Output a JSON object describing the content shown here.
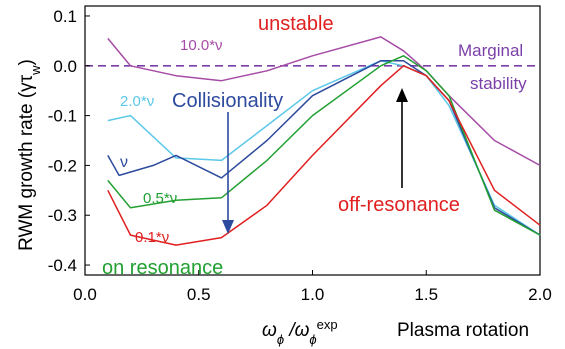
{
  "chart_data": {
    "type": "line",
    "ylabel": "RWM growth rate (γτ",
    "ylabel_sub": "w",
    "ylabel_end": ")",
    "xlabel_main": "ω",
    "xlabel_sub1": "ϕ",
    "xlabel_slash": " /ω",
    "xlabel_sub2": "ϕ",
    "xlabel_sup": "exp",
    "xlabel_extra": "Plasma rotation",
    "xlim": [
      0.0,
      2.0
    ],
    "ylim": [
      -0.42,
      0.12
    ],
    "x_ticks": [
      "0.0",
      "0.5",
      "1.0",
      "1.5",
      "2.0"
    ],
    "y_ticks": [
      "0.1",
      "0.0",
      "-0.1",
      "-0.2",
      "-0.3",
      "-0.4"
    ],
    "x_tick_values": [
      0.0,
      0.5,
      1.0,
      1.5,
      2.0
    ],
    "y_tick_values": [
      0.1,
      0.0,
      -0.1,
      -0.2,
      -0.3,
      -0.4
    ],
    "marginal_stability_y": 0.0,
    "series": [
      {
        "name": "10.0*ν",
        "color": "#a64ca6",
        "x": [
          0.1,
          0.2,
          0.4,
          0.6,
          0.8,
          1.0,
          1.3,
          1.4,
          1.5,
          1.6,
          1.8,
          2.0
        ],
        "y": [
          0.055,
          0.0,
          -0.02,
          -0.03,
          -0.01,
          0.02,
          0.058,
          0.03,
          -0.01,
          -0.06,
          -0.15,
          -0.2
        ]
      },
      {
        "name": "2.0*ν",
        "color": "#5bc8e8",
        "x": [
          0.1,
          0.2,
          0.4,
          0.6,
          0.8,
          1.0,
          1.3,
          1.4,
          1.5,
          1.6,
          1.8,
          2.0
        ],
        "y": [
          -0.11,
          -0.1,
          -0.185,
          -0.19,
          -0.12,
          -0.05,
          0.01,
          0.0,
          -0.02,
          -0.08,
          -0.28,
          -0.34
        ]
      },
      {
        "name": "ν",
        "color": "#2d4b9e",
        "x": [
          0.1,
          0.15,
          0.3,
          0.4,
          0.6,
          0.8,
          1.0,
          1.3,
          1.4,
          1.5,
          1.6,
          1.8,
          2.0
        ],
        "y": [
          -0.18,
          -0.22,
          -0.2,
          -0.18,
          -0.225,
          -0.15,
          -0.06,
          0.01,
          0.01,
          -0.02,
          -0.07,
          -0.285,
          -0.34
        ]
      },
      {
        "name": "0.5*ν",
        "color": "#22a032",
        "x": [
          0.1,
          0.2,
          0.4,
          0.6,
          0.8,
          1.0,
          1.3,
          1.4,
          1.5,
          1.6,
          1.8,
          2.0
        ],
        "y": [
          -0.23,
          -0.285,
          -0.27,
          -0.265,
          -0.19,
          -0.1,
          0.0,
          0.02,
          -0.01,
          -0.06,
          -0.29,
          -0.34
        ]
      },
      {
        "name": "0.1*ν",
        "color": "#e02020",
        "x": [
          0.1,
          0.2,
          0.4,
          0.6,
          0.8,
          1.0,
          1.3,
          1.4,
          1.5,
          1.6,
          1.8,
          2.0
        ],
        "y": [
          -0.25,
          -0.34,
          -0.36,
          -0.345,
          -0.28,
          -0.18,
          -0.04,
          0.0,
          -0.02,
          -0.07,
          -0.25,
          -0.32
        ]
      }
    ],
    "annotations": {
      "unstable": "unstable",
      "marginal_line1": "Marginal",
      "marginal_line2": "stability",
      "collisionality": "Collisionality",
      "off_resonance": "off-resonance",
      "on_resonance": "on resonance",
      "label_10nu": "10.0*ν",
      "label_2nu": "2.0*ν",
      "label_nu": "ν",
      "label_05nu": "0.5*ν",
      "label_01nu": "0.1*ν"
    },
    "annotation_colors": {
      "unstable": "#e02020",
      "marginal": "#7b3fa8",
      "collisionality": "#2d4b9e",
      "off_resonance": "#e02020",
      "on_resonance": "#22a032"
    }
  }
}
